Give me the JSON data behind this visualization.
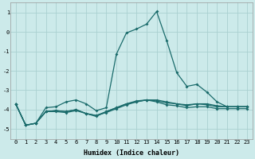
{
  "title": "",
  "xlabel": "Humidex (Indice chaleur)",
  "bg_color": "#cceaea",
  "grid_color": "#aad0d0",
  "line_color": "#1a6b6b",
  "xlim": [
    -0.5,
    23.5
  ],
  "ylim": [
    -5.5,
    1.5
  ],
  "yticks": [
    1,
    0,
    -1,
    -2,
    -3,
    -4,
    -5
  ],
  "xticks": [
    0,
    1,
    2,
    3,
    4,
    5,
    6,
    7,
    8,
    9,
    10,
    11,
    12,
    13,
    14,
    15,
    16,
    17,
    18,
    19,
    20,
    21,
    22,
    23
  ],
  "series": [
    [
      -3.7,
      -4.8,
      -4.7,
      -3.9,
      -3.85,
      -3.6,
      -3.5,
      -3.7,
      -4.05,
      -3.9,
      -1.15,
      -0.05,
      0.15,
      0.4,
      1.05,
      -0.45,
      -2.1,
      -2.8,
      -2.7,
      -3.1,
      -3.6,
      -3.85,
      -3.85,
      -3.85
    ],
    [
      -3.7,
      -4.8,
      -4.7,
      -4.1,
      -4.05,
      -4.1,
      -4.0,
      -4.2,
      -4.3,
      -4.1,
      -3.9,
      -3.7,
      -3.55,
      -3.5,
      -3.6,
      -3.75,
      -3.8,
      -3.9,
      -3.85,
      -3.85,
      -3.95,
      -3.95,
      -3.95,
      -3.95
    ],
    [
      -3.7,
      -4.8,
      -4.7,
      -4.1,
      -4.05,
      -4.1,
      -4.0,
      -4.2,
      -4.35,
      -4.1,
      -3.9,
      -3.7,
      -3.6,
      -3.5,
      -3.55,
      -3.65,
      -3.7,
      -3.8,
      -3.7,
      -3.75,
      -3.85,
      -3.85,
      -3.85,
      -3.85
    ],
    [
      -3.7,
      -4.8,
      -4.7,
      -4.1,
      -4.1,
      -4.15,
      -4.05,
      -4.2,
      -4.3,
      -4.15,
      -3.95,
      -3.75,
      -3.6,
      -3.5,
      -3.5,
      -3.6,
      -3.7,
      -3.75,
      -3.7,
      -3.7,
      -3.8,
      -3.85,
      -3.85,
      -3.85
    ]
  ],
  "markersize": 2.0,
  "linewidth": 0.9,
  "tick_fontsize": 5.0,
  "xlabel_fontsize": 6.0
}
